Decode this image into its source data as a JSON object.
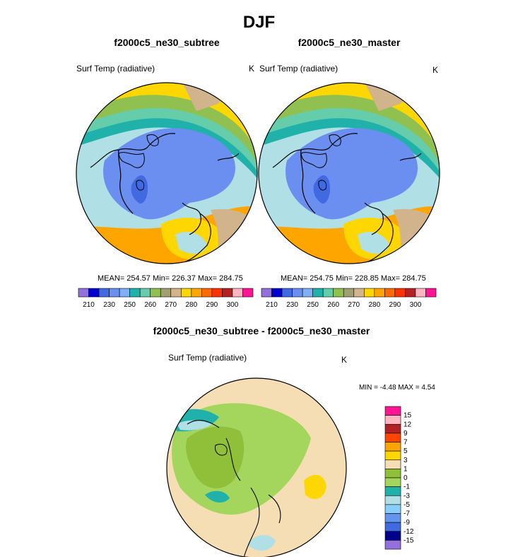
{
  "title": "DJF",
  "panels": [
    {
      "title": "f2000c5_ne30_subtree",
      "variable": "Surf Temp (radiative)",
      "units": "K",
      "stats": "MEAN= 254.57  Min= 226.37  Max= 284.75"
    },
    {
      "title": "f2000c5_ne30_master",
      "variable": "Surf Temp (radiative)",
      "units": "K",
      "stats": "MEAN= 254.75  Min= 228.85  Max= 284.75"
    },
    {
      "title": "f2000c5_ne30_subtree - f2000c5_ne30_master",
      "variable": "Surf Temp (radiative)",
      "units": "K",
      "stats": "MIN =  -4.48 MAX =   4.54"
    }
  ],
  "colorbar_top": {
    "colors": [
      "#9370db",
      "#0000cd",
      "#4169e1",
      "#6a8ff0",
      "#7fb0f5",
      "#20b2aa",
      "#66cdaa",
      "#90c050",
      "#a0a070",
      "#d2b48c",
      "#ffd700",
      "#ffa500",
      "#ff6a00",
      "#ff3300",
      "#b22222",
      "#ffb6c1",
      "#ff1493"
    ],
    "labels": [
      "210",
      "230",
      "250",
      "260",
      "270",
      "280",
      "290",
      "300"
    ]
  },
  "colorbar_diff": {
    "colors": [
      "#ff1493",
      "#ffb6c1",
      "#b22222",
      "#ff4500",
      "#ffa500",
      "#ffd700",
      "#f5deb3",
      "#90c03a",
      "#a4d65e",
      "#20b2aa",
      "#b0e0e6",
      "#87cefa",
      "#6495ed",
      "#4169e1",
      "#00008b",
      "#9370db"
    ],
    "labels": [
      "15",
      "12",
      "9",
      "7",
      "5",
      "3",
      "1",
      "0",
      "-1",
      "-3",
      "-5",
      "-7",
      "-9",
      "-12",
      "-15"
    ]
  },
  "chart_data": [
    {
      "type": "heatmap",
      "title": "f2000c5_ne30_subtree",
      "subtitle": "Surf Temp (radiative)",
      "units": "K",
      "projection": "polar stereographic (north pole)",
      "mean": 254.57,
      "min": 226.37,
      "max": 284.75,
      "contour_levels": [
        210,
        220,
        230,
        240,
        250,
        255,
        260,
        265,
        270,
        275,
        280,
        285,
        290,
        295,
        300
      ]
    },
    {
      "type": "heatmap",
      "title": "f2000c5_ne30_master",
      "subtitle": "Surf Temp (radiative)",
      "units": "K",
      "projection": "polar stereographic (north pole)",
      "mean": 254.75,
      "min": 228.85,
      "max": 284.75,
      "contour_levels": [
        210,
        220,
        230,
        240,
        250,
        255,
        260,
        265,
        270,
        275,
        280,
        285,
        290,
        295,
        300
      ]
    },
    {
      "type": "heatmap",
      "title": "f2000c5_ne30_subtree - f2000c5_ne30_master",
      "subtitle": "Surf Temp (radiative)",
      "units": "K",
      "projection": "polar stereographic (north pole)",
      "min": -4.48,
      "max": 4.54,
      "contour_levels": [
        -15,
        -12,
        -9,
        -7,
        -5,
        -3,
        -1,
        0,
        1,
        3,
        5,
        7,
        9,
        12,
        15
      ]
    }
  ]
}
